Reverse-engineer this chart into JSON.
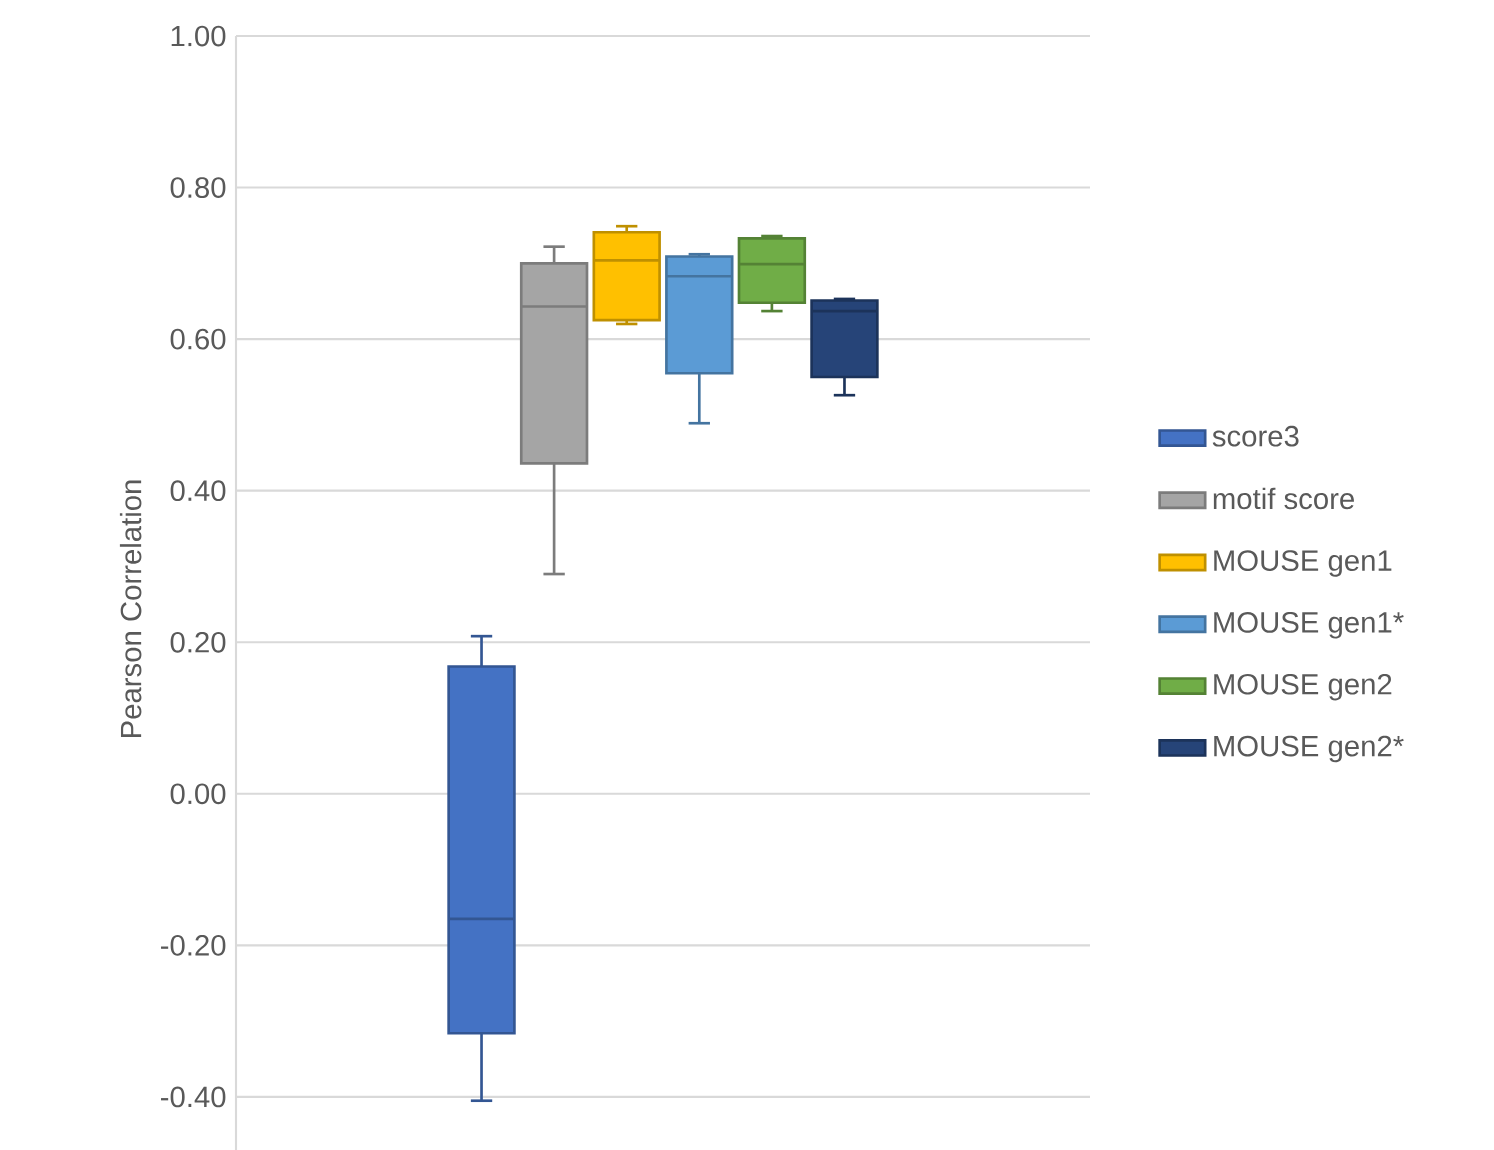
{
  "chart_data": {
    "type": "box",
    "ylabel": "Pearson Correlation",
    "categories": [
      null
    ],
    "ylim": [
      -0.47,
      1.0
    ],
    "yticks": [
      {
        "value": -0.4,
        "label": "-0.40"
      },
      {
        "value": -0.2,
        "label": "-0.20"
      },
      {
        "value": 0,
        "label": "0.00"
      },
      {
        "value": 0.2,
        "label": "0.20"
      },
      {
        "value": 0.4,
        "label": "0.40"
      },
      {
        "value": 0.6,
        "label": "0.60"
      },
      {
        "value": 0.8,
        "label": "0.80"
      },
      {
        "value": 1.0,
        "label": "1.00"
      }
    ],
    "grid": "y",
    "legend": "right",
    "tick_labels": "y",
    "series": [
      {
        "name": "score3",
        "color": "#4472c4",
        "boxes": [
          {
            "low": -0.405,
            "q1": -0.316,
            "median": -0.165,
            "q3": 0.168,
            "high": 0.208
          }
        ]
      },
      {
        "name": "motif score",
        "color": "#a5a5a5",
        "boxes": [
          {
            "low": 0.29,
            "q1": 0.436,
            "median": 0.643,
            "q3": 0.7,
            "high": 0.722
          }
        ]
      },
      {
        "name": "MOUSE gen1",
        "color": "#ffc000",
        "boxes": [
          {
            "low": 0.62,
            "q1": 0.625,
            "median": 0.704,
            "q3": 0.741,
            "high": 0.749
          }
        ]
      },
      {
        "name": "MOUSE gen1*",
        "color": "#5b9bd5",
        "boxes": [
          {
            "low": 0.489,
            "q1": 0.555,
            "median": 0.683,
            "q3": 0.709,
            "high": 0.712
          }
        ]
      },
      {
        "name": "MOUSE gen2",
        "color": "#70ad47",
        "boxes": [
          {
            "low": 0.637,
            "q1": 0.648,
            "median": 0.699,
            "q3": 0.733,
            "high": 0.736
          }
        ]
      },
      {
        "name": "MOUSE gen2*",
        "color": "#264478",
        "boxes": [
          {
            "low": 0.526,
            "q1": 0.55,
            "median": 0.637,
            "q3": 0.651,
            "high": 0.653
          }
        ]
      }
    ]
  }
}
